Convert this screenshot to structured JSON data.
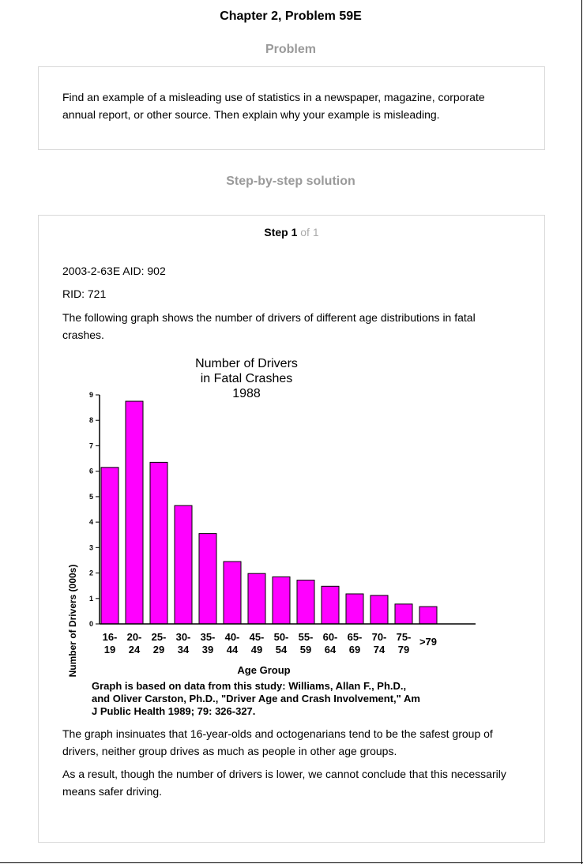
{
  "page": {
    "title": "Chapter 2, Problem 59E",
    "problem_heading": "Problem",
    "solution_heading": "Step-by-step solution"
  },
  "problem": {
    "text_line1": "Find an example of a misleading use of statistics in a newspaper, magazine, corporate",
    "text_line2": "annual report, or other source. Then explain why your example is misleading."
  },
  "step": {
    "label": "Step 1",
    "of": " of 1",
    "ids_line1": "2003-2-63E AID: 902",
    "ids_line2": "RID: 721",
    "intro_line1": "The following graph shows the number of drivers of different age distributions in fatal",
    "intro_line2": "crashes.",
    "conclusion1_line1": "The graph insinuates that 16-year-olds and octogenarians tend to be the safest group of",
    "conclusion1_line2": "drivers, neither group drives as much as people in other age groups.",
    "conclusion2_line1": "As a result, though the number of drivers is lower, we cannot conclude that this necessarily",
    "conclusion2_line2": "means safer driving."
  },
  "chart_data": {
    "type": "bar",
    "title_lines": [
      "Number of Drivers",
      "in Fatal Crashes",
      "1988"
    ],
    "ylabel": "Number of Drivers (000s)",
    "xlabel": "Age Group",
    "ylim": [
      0,
      9
    ],
    "yticks": [
      "0",
      "1",
      "2",
      "3",
      "4",
      "5",
      "6",
      "7",
      "8",
      "9"
    ],
    "categories": [
      [
        "16-",
        "19"
      ],
      [
        "20-",
        "24"
      ],
      [
        "25-",
        "29"
      ],
      [
        "30-",
        "34"
      ],
      [
        "35-",
        "39"
      ],
      [
        "40-",
        "44"
      ],
      [
        "45-",
        "49"
      ],
      [
        "50-",
        "54"
      ],
      [
        "55-",
        "59"
      ],
      [
        "60-",
        "64"
      ],
      [
        "65-",
        "69"
      ],
      [
        "70-",
        "74"
      ],
      [
        "75-",
        "79"
      ],
      [
        ">79"
      ]
    ],
    "values": [
      6.15,
      8.75,
      6.35,
      4.65,
      3.55,
      2.45,
      1.98,
      1.85,
      1.72,
      1.48,
      1.18,
      1.12,
      0.78,
      0.68
    ],
    "bar_color": "#ff00ff",
    "grid": false,
    "source_lines": [
      "Graph is based on data from this study:  Williams, Allan F., Ph.D.,",
      "and Oliver Carston, Ph.D., \"Driver Age and Crash Involvement,\" Am",
      "J Public Health 1989; 79: 326-327."
    ]
  }
}
